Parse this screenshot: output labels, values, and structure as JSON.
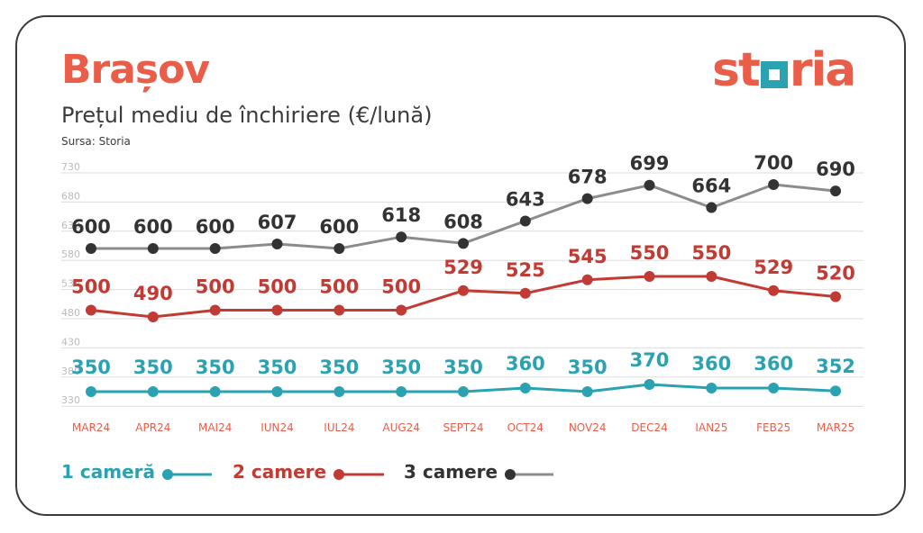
{
  "header": {
    "city": "Brașov",
    "subtitle": "Prețul mediu de închiriere (€/lună)",
    "source": "Sursa: Storia",
    "logo_start": "st",
    "logo_end": "ria"
  },
  "colors": {
    "brand": "#ea5e49",
    "teal": "#2aa2b2",
    "red": "#c23a34",
    "grey": "#8c8c8c",
    "dark": "#333333",
    "tick": "#bbbbbb",
    "month": "#ea5e49"
  },
  "chart_data": {
    "type": "line",
    "categories": [
      "MAR24",
      "APR24",
      "MAI24",
      "IUN24",
      "IUL24",
      "AUG24",
      "SEPT24",
      "OCT24",
      "NOV24",
      "DEC24",
      "IAN25",
      "FEB25",
      "MAR25"
    ],
    "y_ticks": [
      "730",
      "680",
      "630",
      "580",
      "530",
      "480",
      "430",
      "380",
      "330"
    ],
    "grid": true,
    "series": [
      {
        "name": "1 cameră",
        "values": [
          350,
          350,
          350,
          350,
          350,
          350,
          350,
          360,
          350,
          370,
          360,
          360,
          352
        ],
        "labels": [
          "350",
          "350",
          "350",
          "350",
          "350",
          "350",
          "350",
          "360",
          "350",
          "370",
          "360",
          "360",
          "352"
        ]
      },
      {
        "name": "2 camere",
        "values": [
          500,
          490,
          500,
          500,
          500,
          500,
          529,
          525,
          545,
          550,
          550,
          529,
          520
        ],
        "labels": [
          "500",
          "490",
          "500",
          "500",
          "500",
          "500",
          "529",
          "525",
          "545",
          "550",
          "550",
          "529",
          "520"
        ]
      },
      {
        "name": "3 camere",
        "values": [
          600,
          600,
          600,
          607,
          600,
          618,
          608,
          643,
          678,
          699,
          664,
          700,
          690
        ],
        "labels": [
          "600",
          "600",
          "600",
          "607",
          "600",
          "618",
          "608",
          "643",
          "678",
          "699",
          "664",
          "700",
          "690"
        ]
      }
    ],
    "legend_position": "bottom-left"
  }
}
